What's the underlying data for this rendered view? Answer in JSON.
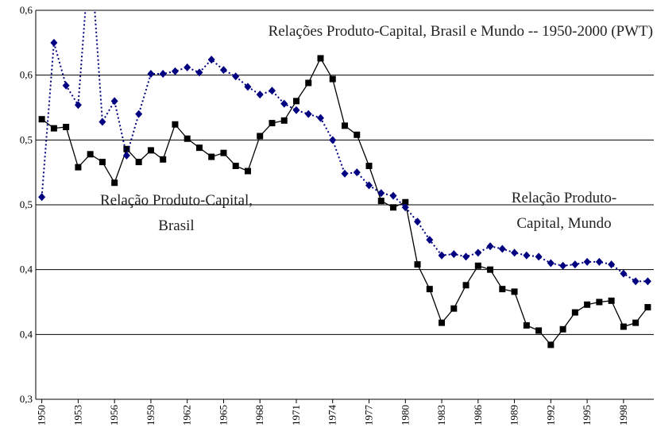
{
  "chart_data": {
    "type": "line",
    "title": "Relações Produto-Capital, Brasil e Mundo -- 1950-2000 (PWT)",
    "annotations": [
      {
        "lines": [
          "Relação Produto-Capital,",
          "Brasil"
        ]
      },
      {
        "lines": [
          "Relação Produto-",
          "Capital, Mundo"
        ]
      }
    ],
    "x": [
      1950,
      1951,
      1952,
      1953,
      1954,
      1955,
      1956,
      1957,
      1958,
      1959,
      1960,
      1961,
      1962,
      1963,
      1964,
      1965,
      1966,
      1967,
      1968,
      1969,
      1970,
      1971,
      1972,
      1973,
      1974,
      1975,
      1976,
      1977,
      1978,
      1979,
      1980,
      1981,
      1982,
      1983,
      1984,
      1985,
      1986,
      1987,
      1988,
      1989,
      1990,
      1991,
      1992,
      1993,
      1994,
      1995,
      1996,
      1997,
      1998,
      1999,
      2000
    ],
    "xlim": [
      1949.5,
      2000.5
    ],
    "xticks": [
      1950,
      1953,
      1956,
      1959,
      1962,
      1965,
      1968,
      1971,
      1974,
      1977,
      1980,
      1983,
      1986,
      1989,
      1992,
      1995,
      1998
    ],
    "ylim": [
      0.3,
      0.6
    ],
    "yticks": [
      {
        "value": 0.3,
        "label": "0,3"
      },
      {
        "value": 0.35,
        "label": "0,4"
      },
      {
        "value": 0.4,
        "label": "0,4"
      },
      {
        "value": 0.45,
        "label": "0,5"
      },
      {
        "value": 0.5,
        "label": "0,5"
      },
      {
        "value": 0.55,
        "label": "0,6"
      },
      {
        "value": 0.6,
        "label": "0,6"
      }
    ],
    "grid": true,
    "series": [
      {
        "color": "#000000",
        "marker": "square",
        "dash": false,
        "values": [
          0.516,
          0.509,
          0.51,
          0.479,
          0.489,
          0.483,
          0.467,
          0.493,
          0.483,
          0.492,
          0.485,
          0.512,
          0.501,
          0.494,
          0.487,
          0.49,
          0.48,
          0.476,
          0.503,
          0.513,
          0.515,
          0.53,
          0.544,
          0.563,
          0.547,
          0.511,
          0.504,
          0.48,
          0.453,
          0.448,
          0.452,
          0.404,
          0.385,
          0.359,
          0.37,
          0.388,
          0.403,
          0.4,
          0.385,
          0.383,
          0.357,
          0.353,
          0.342,
          0.354,
          0.367,
          0.373,
          0.375,
          0.376,
          0.356,
          0.359,
          0.371
        ]
      },
      {
        "color": "#000080",
        "marker": "diamond",
        "dash": true,
        "values": [
          0.456,
          0.575,
          0.542,
          0.527,
          0.65,
          0.514,
          0.53,
          0.488,
          0.52,
          0.551,
          0.551,
          0.553,
          0.556,
          0.552,
          0.562,
          0.554,
          0.549,
          0.541,
          0.535,
          0.538,
          0.528,
          0.523,
          0.52,
          0.517,
          0.5,
          0.474,
          0.475,
          0.465,
          0.459,
          0.457,
          0.448,
          0.437,
          0.423,
          0.411,
          0.412,
          0.41,
          0.413,
          0.418,
          0.416,
          0.413,
          0.411,
          0.41,
          0.405,
          0.403,
          0.404,
          0.406,
          0.406,
          0.404,
          0.397,
          0.391,
          0.391
        ]
      }
    ]
  }
}
